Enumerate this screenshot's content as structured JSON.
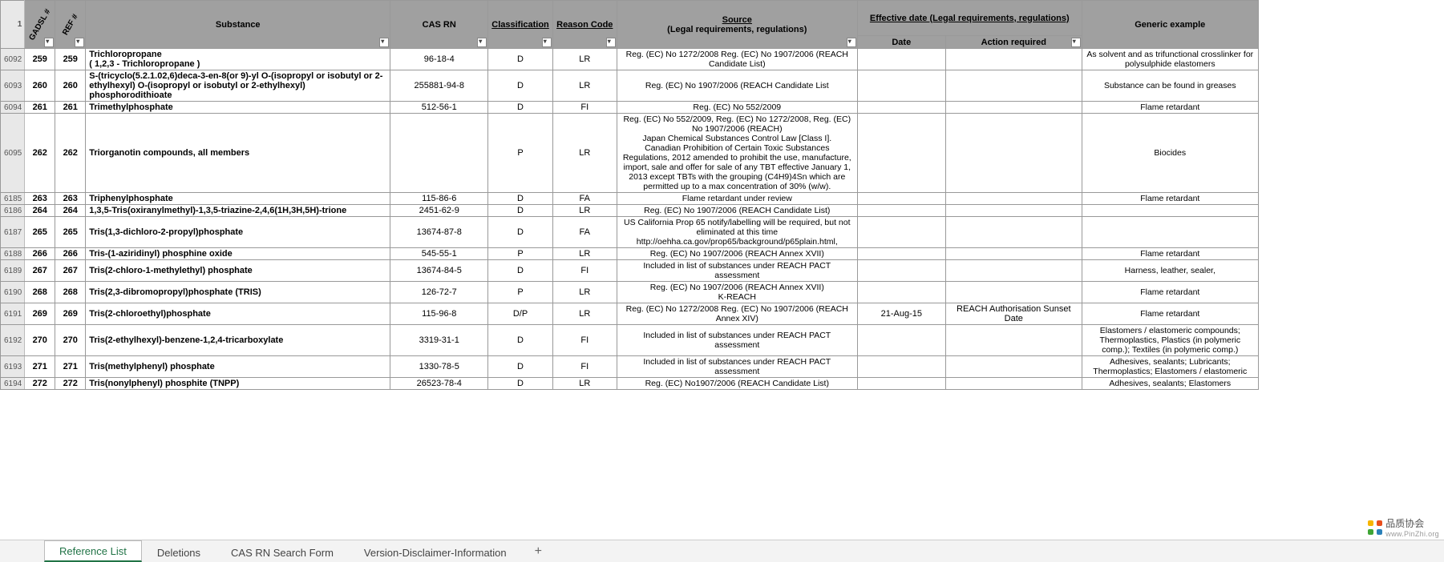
{
  "header": {
    "rownum1": "1",
    "gadsl": "GADSL #",
    "ref": "REF #",
    "substance": "Substance",
    "cas": "CAS RN",
    "classification": "Classification",
    "reason": "Reason Code",
    "source": "Source",
    "source_sub": "(Legal requirements, regulations)",
    "eff_date": "Effective date (Legal requirements, regulations)",
    "date": "Date",
    "divider": "|",
    "action": "Action required",
    "generic": "Generic example"
  },
  "rows": [
    {
      "rn": "6092",
      "g": "259",
      "r": "259",
      "sub": "Trichloropropane\n( 1,2,3 - Trichloropropane )",
      "cas": "96-18-4",
      "cls": "D",
      "rc": "LR",
      "src": "Reg. (EC) No 1272/2008 Reg. (EC) No 1907/2006 (REACH Candidate List)",
      "dt": "",
      "act": "",
      "gen": "As solvent and as trifunctional crosslinker for polysulphide elastomers"
    },
    {
      "rn": "6093",
      "g": "260",
      "r": "260",
      "sub": "S-(tricyclo(5.2.1.02,6)deca-3-en-8(or 9)-yl O-(isopropyl or isobutyl or 2-ethylhexyl) O-(isopropyl or isobutyl or 2-ethylhexyl) phosphorodithioate",
      "cas": "255881-94-8",
      "cls": "D",
      "rc": "LR",
      "src": "Reg. (EC) No 1907/2006 (REACH Candidate List",
      "dt": "",
      "act": "",
      "gen": "Substance can be found in greases"
    },
    {
      "rn": "6094",
      "g": "261",
      "r": "261",
      "sub": "Trimethylphosphate",
      "cas": "512-56-1",
      "cls": "D",
      "rc": "FI",
      "src": "Reg. (EC) No 552/2009",
      "dt": "",
      "act": "",
      "gen": "Flame retardant"
    },
    {
      "rn": "6095",
      "g": "262",
      "r": "262",
      "sub": "Triorganotin compounds, all members",
      "cas": "",
      "cls": "P",
      "rc": "LR",
      "src": "Reg. (EC) No 552/2009, Reg. (EC) No 1272/2008, Reg. (EC) No 1907/2006 (REACH)\nJapan Chemical Substances Control Law [Class I].\nCanadian Prohibition of Certain Toxic Substances Regulations, 2012 amended to prohibit the use, manufacture, import, sale and offer for sale of any TBT effective January 1, 2013 except TBTs with the grouping (C4H9)4Sn which are permitted up to a max concentration of 30% (w/w).",
      "dt": "",
      "act": "",
      "gen": "Biocides"
    },
    {
      "rn": "6185",
      "g": "263",
      "r": "263",
      "sub": "Triphenylphosphate",
      "cas": "115-86-6",
      "cls": "D",
      "rc": "FA",
      "src": "Flame retardant under review",
      "dt": "",
      "act": "",
      "gen": "Flame retardant"
    },
    {
      "rn": "6186",
      "g": "264",
      "r": "264",
      "sub": "1,3,5-Tris(oxiranylmethyl)-1,3,5-triazine-2,4,6(1H,3H,5H)-trione",
      "cas": "2451-62-9",
      "cls": "D",
      "rc": "LR",
      "src": "Reg. (EC) No 1907/2006 (REACH Candidate List)",
      "dt": "",
      "act": "",
      "gen": ""
    },
    {
      "rn": "6187",
      "g": "265",
      "r": "265",
      "sub": "Tris(1,3-dichloro-2-propyl)phosphate",
      "cas": "13674-87-8",
      "cls": "D",
      "rc": "FA",
      "src": "US California Prop 65 notify/labelling will be required, but not eliminated at this time http://oehha.ca.gov/prop65/background/p65plain.html,",
      "dt": "",
      "act": "",
      "gen": ""
    },
    {
      "rn": "6188",
      "g": "266",
      "r": "266",
      "sub": "Tris-(1-aziridinyl) phosphine oxide",
      "cas": "545-55-1",
      "cls": "P",
      "rc": "LR",
      "src": "Reg. (EC) No 1907/2006 (REACH Annex XVII)",
      "dt": "",
      "act": "",
      "gen": "Flame retardant"
    },
    {
      "rn": "6189",
      "g": "267",
      "r": "267",
      "sub": "Tris(2-chloro-1-methylethyl) phosphate",
      "cas": "13674-84-5",
      "cls": "D",
      "rc": "FI",
      "src": "Included in list of substances under REACH PACT assessment",
      "dt": "",
      "act": "",
      "gen": "Harness, leather, sealer,"
    },
    {
      "rn": "6190",
      "g": "268",
      "r": "268",
      "sub": "Tris(2,3-dibromopropyl)phosphate (TRIS)",
      "cas": "126-72-7",
      "cls": "P",
      "rc": "LR",
      "src": "Reg. (EC) No 1907/2006 (REACH Annex XVII)\nK-REACH",
      "dt": "",
      "act": "",
      "gen": "Flame retardant"
    },
    {
      "rn": "6191",
      "g": "269",
      "r": "269",
      "sub": "Tris(2-chloroethyl)phosphate",
      "cas": "115-96-8",
      "cls": "D/P",
      "rc": "LR",
      "src": "Reg. (EC) No 1272/2008 Reg. (EC) No 1907/2006 (REACH Annex XIV)",
      "dt": "21-Aug-15",
      "act": "REACH Authorisation Sunset Date",
      "gen": "Flame retardant"
    },
    {
      "rn": "6192",
      "g": "270",
      "r": "270",
      "sub": "Tris(2-ethylhexyl)-benzene-1,2,4-tricarboxylate",
      "cas": "3319-31-1",
      "cls": "D",
      "rc": "FI",
      "src": "Included in list of substances under REACH PACT assessment",
      "dt": "",
      "act": "",
      "gen": "Elastomers / elastomeric compounds; Thermoplastics, Plastics (in polymeric comp.); Textiles (in polymeric comp.)"
    },
    {
      "rn": "6193",
      "g": "271",
      "r": "271",
      "sub": "Tris(methylphenyl) phosphate",
      "cas": "1330-78-5",
      "cls": "D",
      "rc": "FI",
      "src": "Included in list of substances under REACH PACT assessment",
      "dt": "",
      "act": "",
      "gen": "Adhesives, sealants; Lubricants; Thermoplastics; Elastomers / elastomeric"
    },
    {
      "rn": "6194",
      "g": "272",
      "r": "272",
      "sub": "Tris(nonylphenyl) phosphite (TNPP)",
      "cas": "26523-78-4",
      "cls": "D",
      "rc": "LR",
      "src": "Reg. (EC) No1907/2006 (REACH Candidate List)",
      "dt": "",
      "act": "",
      "gen": "Adhesives, sealants; Elastomers"
    }
  ],
  "tabs": {
    "t1": "Reference List",
    "t2": "Deletions",
    "t3": "CAS RN Search Form",
    "t4": "Version-Disclaimer-Information"
  },
  "watermark": {
    "cn": "品质协会",
    "en": "www.PinZhi.org"
  }
}
